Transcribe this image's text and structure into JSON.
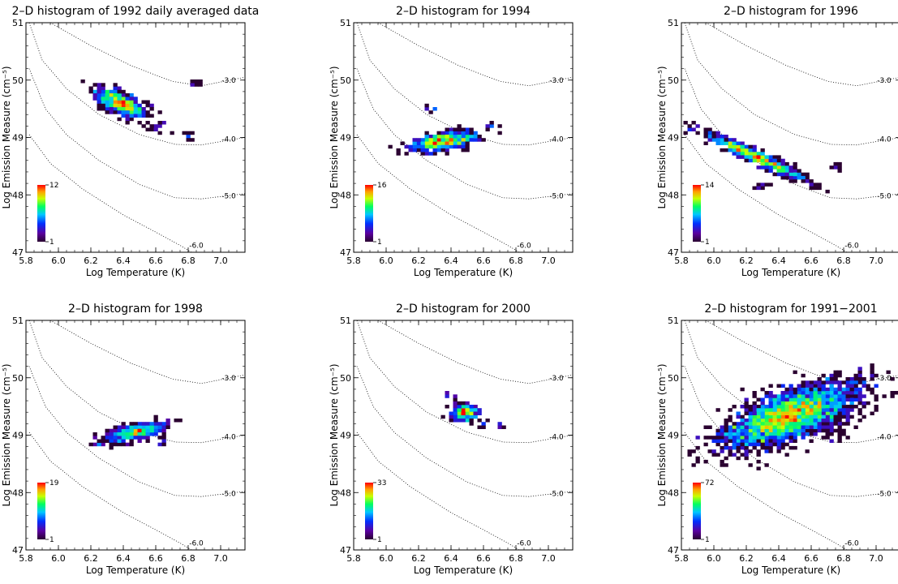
{
  "chart_data": [
    {
      "type": "heatmap",
      "title": "2–D histogram of 1992 daily averaged data",
      "xlabel": "Log Temperature (K)",
      "ylabel": "Log Emission Measure (cm⁻⁵)",
      "xlim": [
        5.8,
        7.15
      ],
      "ylim": [
        47.0,
        51.0
      ],
      "xticks": [
        "5.8",
        "6.0",
        "6.2",
        "6.4",
        "6.6",
        "6.8",
        "7.0"
      ],
      "yticks": [
        "47",
        "48",
        "49",
        "50",
        "51"
      ],
      "contours": [
        "-3.0",
        "-4.0",
        "-5.0",
        "-6.0"
      ],
      "colorbar": {
        "min": "1",
        "max": "12"
      },
      "peak": [
        6.38,
        49.6
      ],
      "spread": [
        0.08,
        0.16
      ],
      "tilt": -1.1,
      "cells": 95,
      "tail": [
        [
          6.6,
          49.25,
          0.1
        ],
        [
          6.84,
          49.92,
          0.04
        ],
        [
          6.8,
          49.05,
          0.06
        ]
      ]
    },
    {
      "type": "heatmap",
      "title": "2–D histogram for 1994",
      "xlabel": "Log Temperature (K)",
      "ylabel": "Log Emission Measure (cm⁻⁵)",
      "xlim": [
        5.8,
        7.15
      ],
      "ylim": [
        47.0,
        51.0
      ],
      "xticks": [
        "5.8",
        "6.0",
        "6.2",
        "6.4",
        "6.6",
        "6.8",
        "7.0"
      ],
      "yticks": [
        "47",
        "48",
        "49",
        "50",
        "51"
      ],
      "contours": [
        "-3.0",
        "-4.0",
        "-5.0",
        "-6.0"
      ],
      "colorbar": {
        "min": "1",
        "max": "16"
      },
      "peak": [
        6.35,
        48.93
      ],
      "spread": [
        0.1,
        0.12
      ],
      "tilt": 0.4,
      "cells": 85,
      "tail": [
        [
          6.28,
          49.5,
          0.05
        ],
        [
          6.65,
          49.22,
          0.05
        ]
      ]
    },
    {
      "type": "heatmap",
      "title": "2–D histogram for 1996",
      "xlabel": "Log Temperature (K)",
      "ylabel": "Log Emission Measure (cm⁻⁵)",
      "xlim": [
        5.8,
        7.15
      ],
      "ylim": [
        47.0,
        51.0
      ],
      "xticks": [
        "5.8",
        "6.0",
        "6.2",
        "6.4",
        "6.6",
        "6.8",
        "7.0"
      ],
      "yticks": [
        "47",
        "48",
        "49",
        "50",
        "51"
      ],
      "contours": [
        "-3.0",
        "-4.0",
        "-5.0",
        "-6.0"
      ],
      "colorbar": {
        "min": "1",
        "max": "14"
      },
      "peak": [
        6.25,
        48.68
      ],
      "spread": [
        0.16,
        0.1
      ],
      "tilt": -1.3,
      "cells": 110,
      "tail": [
        [
          6.75,
          48.5,
          0.04
        ],
        [
          6.3,
          48.15,
          0.06
        ]
      ]
    },
    {
      "type": "heatmap",
      "title": "2–D histogram for 1998",
      "xlabel": "Log Temperature (K)",
      "ylabel": "Log Emission Measure (cm⁻⁵)",
      "xlim": [
        5.8,
        7.15
      ],
      "ylim": [
        47.0,
        51.0
      ],
      "xticks": [
        "5.8",
        "6.0",
        "6.2",
        "6.4",
        "6.6",
        "6.8",
        "7.0"
      ],
      "yticks": [
        "47",
        "48",
        "49",
        "50",
        "51"
      ],
      "contours": [
        "-3.0",
        "-4.0",
        "-5.0",
        "-6.0"
      ],
      "colorbar": {
        "min": "1",
        "max": "19"
      },
      "peak": [
        6.47,
        49.05
      ],
      "spread": [
        0.09,
        0.12
      ],
      "tilt": 0.6,
      "cells": 80,
      "tail": [
        [
          6.26,
          48.87,
          0.05
        ],
        [
          6.63,
          48.87,
          0.04
        ]
      ]
    },
    {
      "type": "heatmap",
      "title": "2–D histogram for 2000",
      "xlabel": "Log Temperature (K)",
      "ylabel": "Log Emission Measure (cm⁻⁵)",
      "xlim": [
        5.8,
        7.15
      ],
      "ylim": [
        47.0,
        51.0
      ],
      "xticks": [
        "5.8",
        "6.0",
        "6.2",
        "6.4",
        "6.6",
        "6.8",
        "7.0"
      ],
      "yticks": [
        "47",
        "48",
        "49",
        "50",
        "51"
      ],
      "contours": [
        "-3.0",
        "-4.0",
        "-5.0",
        "-6.0"
      ],
      "colorbar": {
        "min": "1",
        "max": "33"
      },
      "peak": [
        6.48,
        49.4
      ],
      "spread": [
        0.04,
        0.12
      ],
      "tilt": 0.0,
      "cells": 45,
      "tail": [
        [
          6.39,
          49.7,
          0.05
        ],
        [
          6.6,
          49.2,
          0.05
        ],
        [
          6.7,
          49.18,
          0.03
        ]
      ]
    },
    {
      "type": "heatmap",
      "title": "2–D histogram for 1991−2001",
      "xlabel": "Log Temperature (K)",
      "ylabel": "Log Emission Measure (cm⁻⁵)",
      "xlim": [
        5.8,
        7.15
      ],
      "ylim": [
        47.0,
        51.0
      ],
      "xticks": [
        "5.8",
        "6.0",
        "6.2",
        "6.4",
        "6.6",
        "6.8",
        "7.0"
      ],
      "yticks": [
        "47",
        "48",
        "49",
        "50",
        "51"
      ],
      "contours": [
        "-3.0",
        "-4.0",
        "-5.0",
        "-6.0"
      ],
      "colorbar": {
        "min": "1",
        "max": "72"
      },
      "peak": [
        6.47,
        49.35
      ],
      "spread": [
        0.2,
        0.35
      ],
      "tilt": 0.9,
      "cells": 420,
      "tail": [
        [
          6.2,
          48.85,
          0.3
        ],
        [
          6.75,
          49.0,
          0.12
        ],
        [
          6.85,
          49.9,
          0.05
        ]
      ]
    }
  ]
}
